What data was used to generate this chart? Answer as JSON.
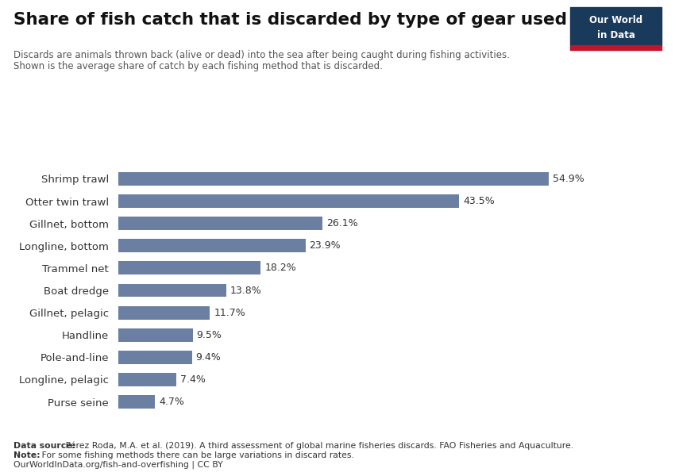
{
  "title": "Share of fish catch that is discarded by type of gear used",
  "subtitle_line1": "Discards are animals thrown back (alive or dead) into the sea after being caught during fishing activities.",
  "subtitle_line2": "Shown is the average share of catch by each fishing method that is discarded.",
  "categories": [
    "Purse seine",
    "Longline, pelagic",
    "Pole-and-line",
    "Handline",
    "Gillnet, pelagic",
    "Boat dredge",
    "Trammel net",
    "Longline, bottom",
    "Gillnet, bottom",
    "Otter twin trawl",
    "Shrimp trawl"
  ],
  "values": [
    4.7,
    7.4,
    9.4,
    9.5,
    11.7,
    13.8,
    18.2,
    23.9,
    26.1,
    43.5,
    54.9
  ],
  "bar_color": "#6b7fa3",
  "background_color": "#ffffff",
  "data_source_bold": "Data source:",
  "data_source_rest": " Pérez Roda, M.A. et al. (2019). A third assessment of global marine fisheries discards. FAO Fisheries and Aquaculture.",
  "note_bold": "Note:",
  "note_rest": " For some fishing methods there can be large variations in discard rates.",
  "url": "OurWorldInData.org/fish-and-overfishing | CC BY",
  "logo_navy": "#1a3a5c",
  "logo_red": "#c0152a",
  "xlim": [
    0,
    62
  ]
}
